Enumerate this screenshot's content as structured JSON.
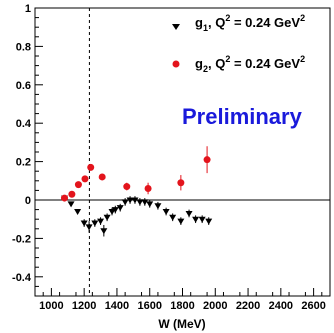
{
  "chart_data": {
    "type": "scatter",
    "xlabel": "W (MeV)",
    "ylabel": "",
    "xlim": [
      900,
      2700
    ],
    "ylim": [
      -0.5,
      1.0
    ],
    "x_ticks": [
      1000,
      1200,
      1400,
      1600,
      1800,
      2000,
      2200,
      2400,
      2600
    ],
    "y_ticks": [
      -0.4,
      -0.2,
      0,
      0.2,
      0.4,
      0.6,
      0.8,
      1
    ],
    "x_tick_labels": [
      "1000",
      "1200",
      "1400",
      "1600",
      "1800",
      "2000",
      "2200",
      "2400",
      "2600"
    ],
    "y_tick_labels": [
      "-0.4",
      "-0.2",
      "0",
      "0.2",
      "0.4",
      "0.6",
      "0.8",
      "1"
    ],
    "grid": false,
    "legend_position": "top-right",
    "reference_lines": {
      "horizontal_y": 0,
      "vertical_dashed_x": 1232
    },
    "annotation": {
      "text": "Preliminary",
      "color": "#1a1adb"
    },
    "series": [
      {
        "name_main": "g",
        "name_sub": "1",
        "name_rest": ", Q",
        "name_sup": "2",
        "name_tail": " = 0.24 GeV",
        "name_sup2": "2",
        "marker": "triangle-down",
        "color": "#000000",
        "x": [
          1080,
          1120,
          1160,
          1200,
          1230,
          1265,
          1300,
          1320,
          1340,
          1370,
          1390,
          1420,
          1450,
          1480,
          1510,
          1540,
          1570,
          1600,
          1650,
          1700,
          1740,
          1790,
          1840,
          1880,
          1920,
          1960
        ],
        "y": [
          0.01,
          -0.02,
          -0.06,
          -0.12,
          -0.14,
          -0.12,
          -0.11,
          -0.16,
          -0.09,
          -0.06,
          -0.05,
          -0.04,
          -0.01,
          0.0,
          0.0,
          -0.01,
          -0.01,
          -0.02,
          -0.03,
          -0.06,
          -0.09,
          -0.11,
          -0.07,
          -0.1,
          -0.1,
          -0.11
        ],
        "err": [
          0.01,
          0.01,
          0.01,
          0.02,
          0.03,
          0.02,
          0.02,
          0.03,
          0.02,
          0.02,
          0.02,
          0.02,
          0.02,
          0.02,
          0.02,
          0.02,
          0.02,
          0.02,
          0.02,
          0.02,
          0.02,
          0.02,
          0.02,
          0.02,
          0.02,
          0.02
        ]
      },
      {
        "name_main": "g",
        "name_sub": "2",
        "name_rest": ", Q",
        "name_sup": "2",
        "name_tail": " = 0.24 GeV",
        "name_sup2": "2",
        "marker": "circle",
        "color": "#e3141c",
        "x": [
          1080,
          1125,
          1165,
          1205,
          1240,
          1310,
          1460,
          1590,
          1790,
          1950
        ],
        "y": [
          0.01,
          0.03,
          0.08,
          0.11,
          0.17,
          0.12,
          0.07,
          0.06,
          0.09,
          0.21
        ],
        "err": [
          0.01,
          0.01,
          0.01,
          0.01,
          0.01,
          0.01,
          0.02,
          0.03,
          0.04,
          0.07
        ]
      }
    ]
  }
}
